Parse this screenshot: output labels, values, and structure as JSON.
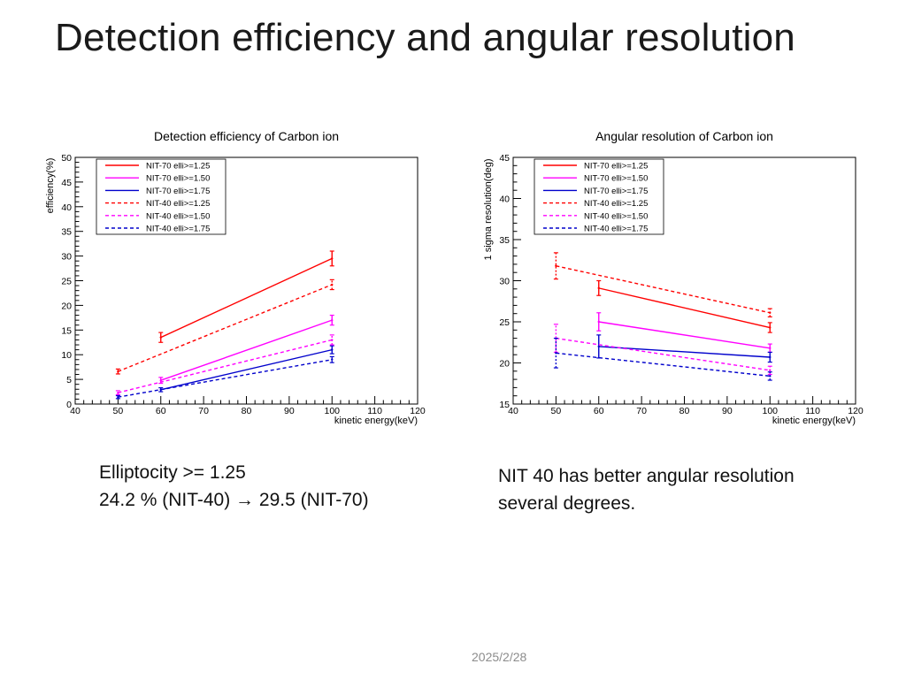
{
  "slide": {
    "title": "Detection efficiency and angular resolution",
    "date": "2025/2/28"
  },
  "notes": {
    "left": [
      "Elliptocity >= 1.25",
      "24.2 % (NIT-40) → 29.5 (NIT-70)"
    ],
    "right": [
      "NIT 40  has better angular resolution",
      "several degrees."
    ]
  },
  "chart_data": [
    {
      "type": "line",
      "title": "Detection efficiency of Carbon ion",
      "xlabel": "kinetic energy(keV)",
      "ylabel": "efficiency(%)",
      "xlim": [
        40,
        120
      ],
      "ylim": [
        0,
        50
      ],
      "xticks": [
        40,
        50,
        60,
        70,
        80,
        90,
        100,
        110,
        120
      ],
      "yticks": [
        0,
        5,
        10,
        15,
        20,
        25,
        30,
        35,
        40,
        45,
        50
      ],
      "grid": false,
      "legend_position": "top-left",
      "series": [
        {
          "name": "NIT-70 elli>=1.25",
          "color": "#ff0000",
          "dash": false,
          "x": [
            60,
            100
          ],
          "y": [
            13.5,
            29.5
          ],
          "err": [
            1.0,
            1.5
          ]
        },
        {
          "name": "NIT-70 elli>=1.50",
          "color": "#ff00ff",
          "dash": false,
          "x": [
            60,
            100
          ],
          "y": [
            4.8,
            17.0
          ],
          "err": [
            0.6,
            1.0
          ]
        },
        {
          "name": "NIT-70 elli>=1.75",
          "color": "#0000cc",
          "dash": false,
          "x": [
            60,
            100
          ],
          "y": [
            2.9,
            11.0
          ],
          "err": [
            0.4,
            0.8
          ]
        },
        {
          "name": "NIT-40 elli>=1.25",
          "color": "#ff0000",
          "dash": true,
          "x": [
            50,
            100
          ],
          "y": [
            6.6,
            24.2
          ],
          "err": [
            0.5,
            1.0
          ]
        },
        {
          "name": "NIT-40 elli>=1.50",
          "color": "#ff00ff",
          "dash": true,
          "x": [
            50,
            100
          ],
          "y": [
            2.3,
            13.0
          ],
          "err": [
            0.4,
            1.0
          ]
        },
        {
          "name": "NIT-40 elli>=1.75",
          "color": "#0000cc",
          "dash": true,
          "x": [
            50,
            100
          ],
          "y": [
            1.4,
            9.0
          ],
          "err": [
            0.3,
            0.6
          ]
        }
      ]
    },
    {
      "type": "line",
      "title": "Angular resolution of Carbon ion",
      "xlabel": "kinetic energy(keV)",
      "ylabel": "1 sigma resolution(deg)",
      "xlim": [
        40,
        120
      ],
      "ylim": [
        15,
        45
      ],
      "xticks": [
        40,
        50,
        60,
        70,
        80,
        90,
        100,
        110,
        120
      ],
      "yticks": [
        15,
        20,
        25,
        30,
        35,
        40,
        45
      ],
      "grid": false,
      "legend_position": "top-left",
      "series": [
        {
          "name": "NIT-70 elli>=1.25",
          "color": "#ff0000",
          "dash": false,
          "x": [
            60,
            100
          ],
          "y": [
            29.1,
            24.3
          ],
          "err": [
            0.9,
            0.6
          ]
        },
        {
          "name": "NIT-70 elli>=1.50",
          "color": "#ff00ff",
          "dash": false,
          "x": [
            60,
            100
          ],
          "y": [
            25.0,
            21.8
          ],
          "err": [
            1.1,
            0.5
          ]
        },
        {
          "name": "NIT-70 elli>=1.75",
          "color": "#0000cc",
          "dash": false,
          "x": [
            60,
            100
          ],
          "y": [
            22.0,
            20.7
          ],
          "err": [
            1.4,
            0.6
          ]
        },
        {
          "name": "NIT-40 elli>=1.25",
          "color": "#ff0000",
          "dash": true,
          "x": [
            50,
            100
          ],
          "y": [
            31.8,
            26.1
          ],
          "err": [
            1.6,
            0.5
          ]
        },
        {
          "name": "NIT-40 elli>=1.50",
          "color": "#ff00ff",
          "dash": true,
          "x": [
            50,
            100
          ],
          "y": [
            23.0,
            19.1
          ],
          "err": [
            1.7,
            0.5
          ]
        },
        {
          "name": "NIT-40 elli>=1.75",
          "color": "#0000cc",
          "dash": true,
          "x": [
            50,
            100
          ],
          "y": [
            21.2,
            18.4
          ],
          "err": [
            1.8,
            0.5
          ]
        }
      ]
    }
  ]
}
